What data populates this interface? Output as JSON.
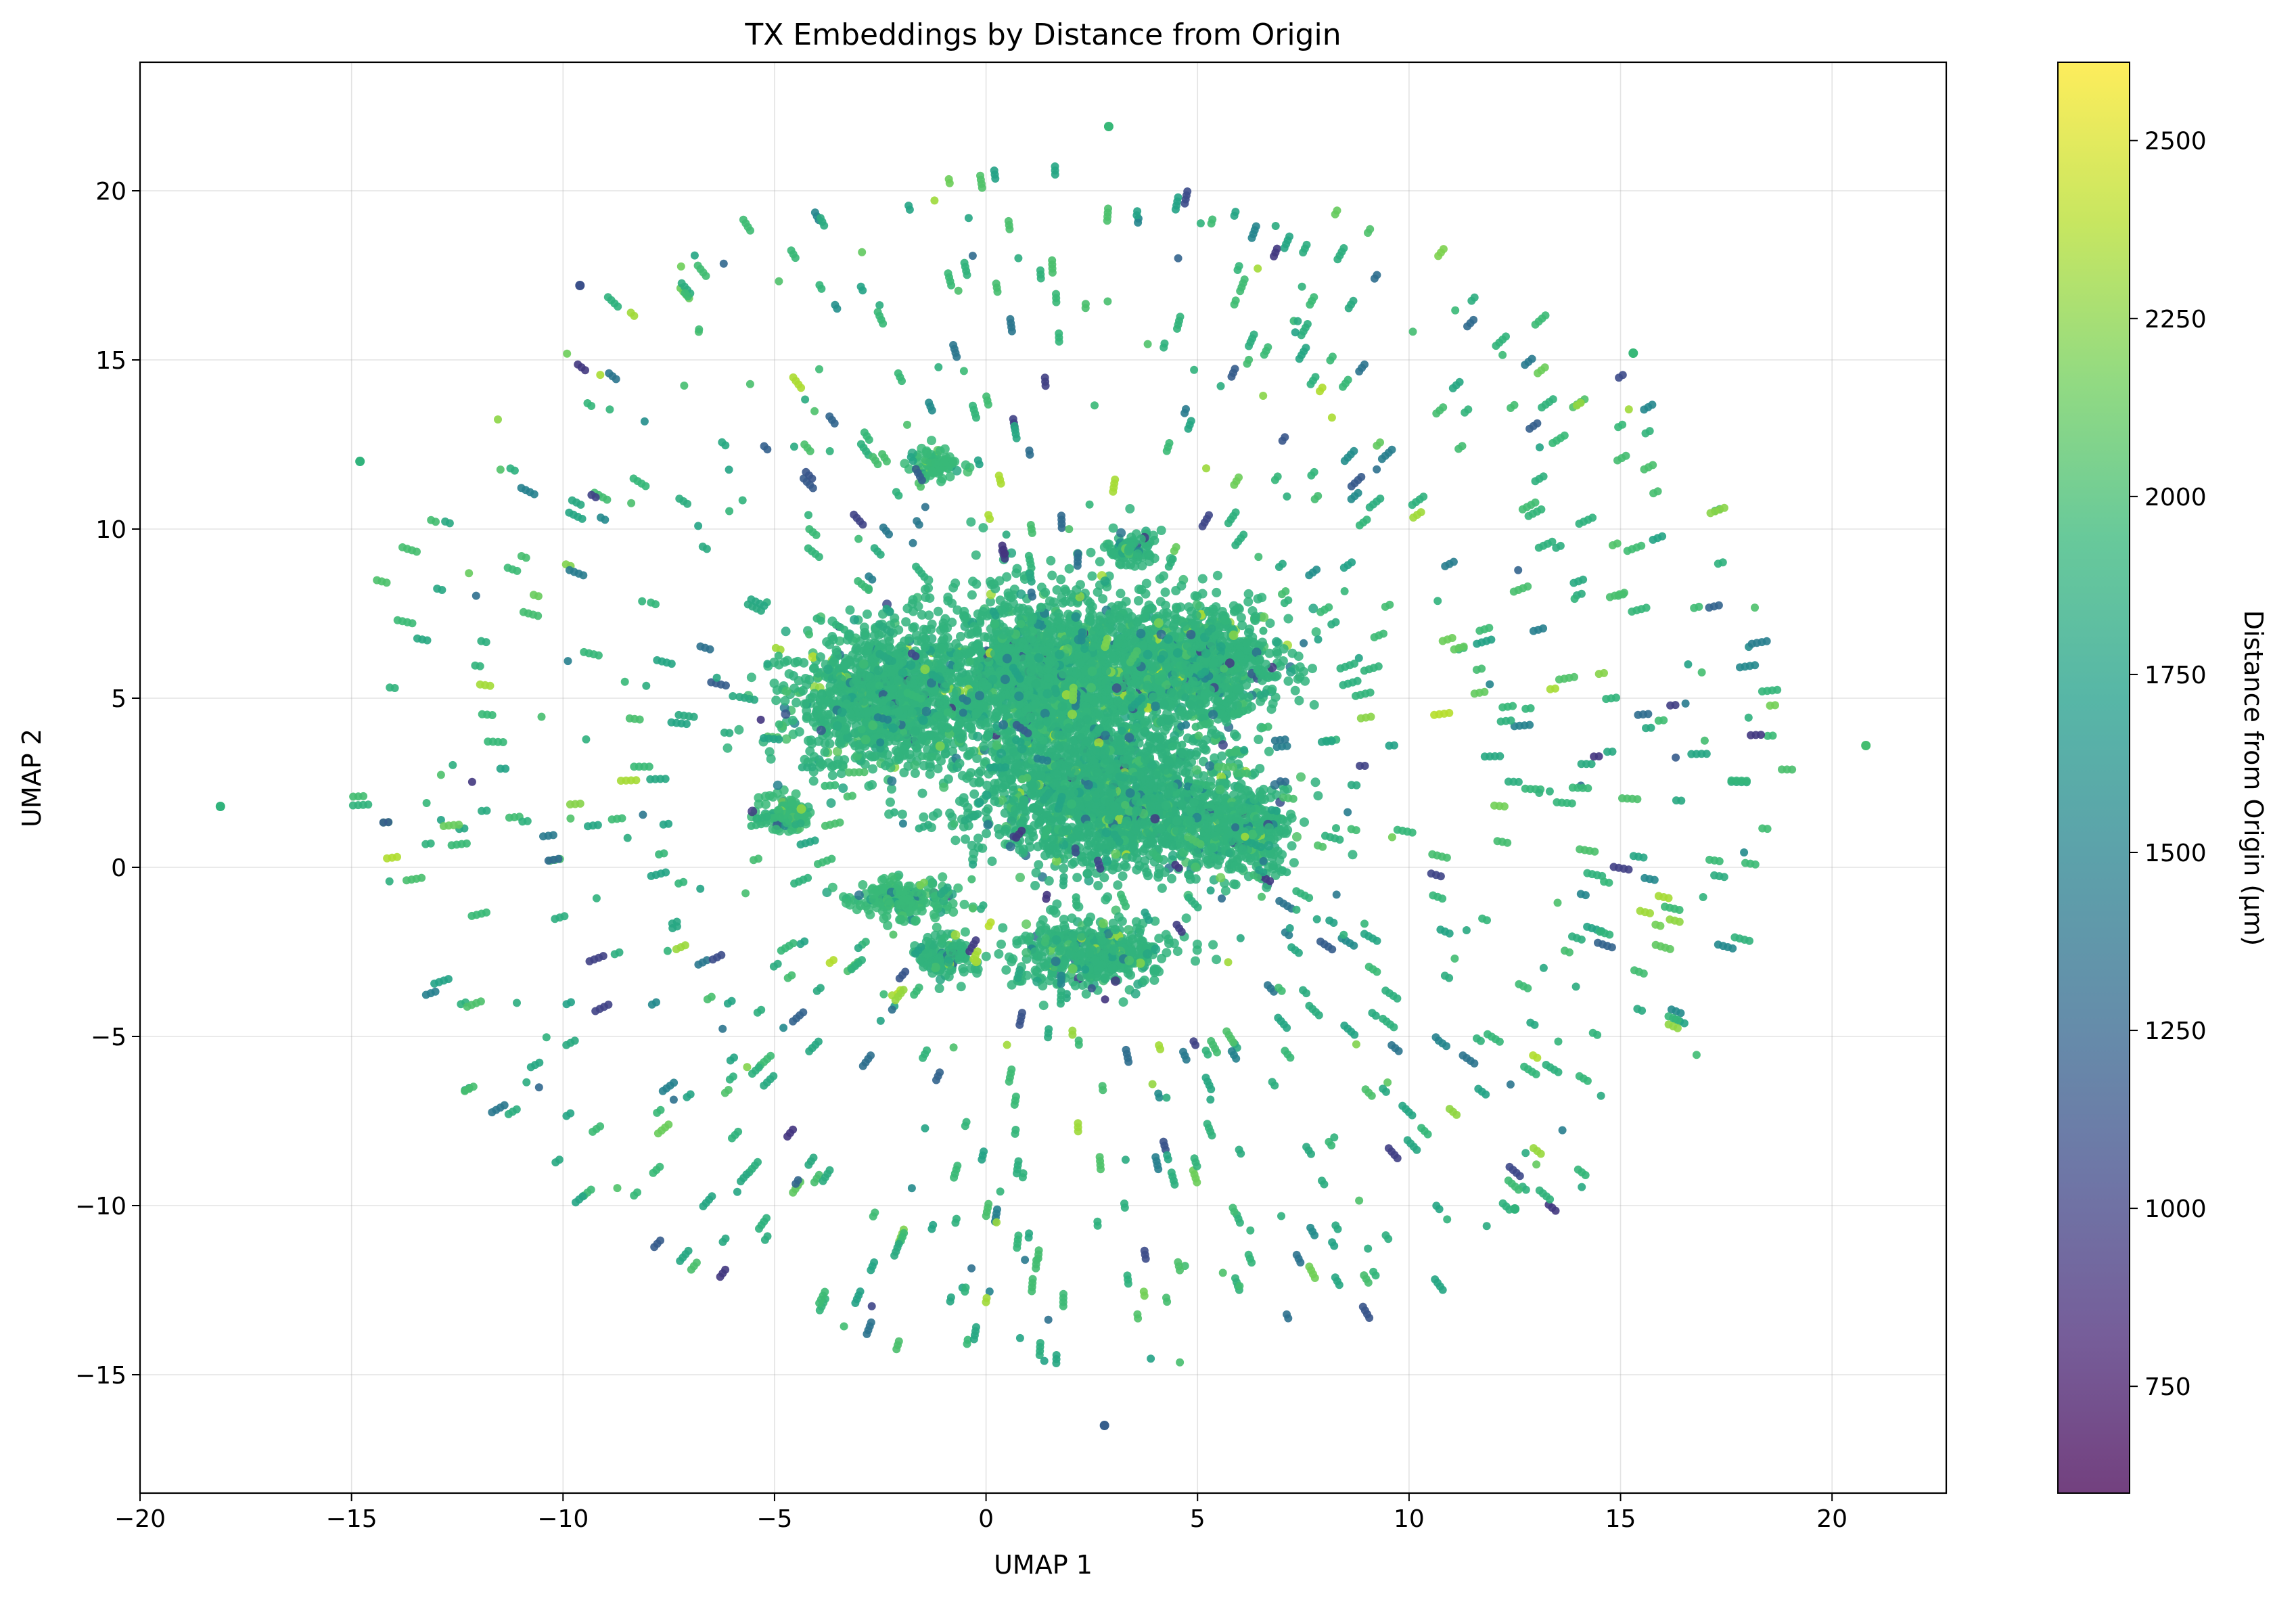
{
  "chart_data": {
    "type": "scatter",
    "title": "TX Embeddings by Distance from Origin",
    "xlabel": "UMAP 1",
    "ylabel": "UMAP 2",
    "xlim": [
      -20,
      22.7
    ],
    "ylim": [
      -18.5,
      23.8
    ],
    "x_ticks": [
      -20,
      -15,
      -10,
      -5,
      0,
      5,
      10,
      15,
      20
    ],
    "y_ticks": [
      -15,
      -10,
      -5,
      0,
      5,
      10,
      15,
      20
    ],
    "x_tick_labels": [
      "−20",
      "−15",
      "−10",
      "−5",
      "0",
      "5",
      "10",
      "15",
      "20"
    ],
    "y_tick_labels": [
      "−15",
      "−10",
      "−5",
      "0",
      "5",
      "10",
      "15",
      "20"
    ],
    "grid": true,
    "colorbar": {
      "label": "Distance from Origin (µm)",
      "range": [
        600,
        2610
      ],
      "ticks": [
        750,
        1000,
        1250,
        1500,
        1750,
        2000,
        2250,
        2500
      ],
      "tick_labels": [
        "750",
        "1000",
        "1250",
        "1500",
        "1750",
        "2000",
        "2250",
        "2500"
      ],
      "colormap": [
        "#440154",
        "#482878",
        "#3e4989",
        "#31688e",
        "#26828e",
        "#1f9e89",
        "#35b779",
        "#6ece58",
        "#b5de2b",
        "#fde725"
      ]
    },
    "clusters": [
      {
        "center": [
          1.5,
          5.5
        ],
        "spread": [
          3.2,
          2.6
        ],
        "value": 1900
      },
      {
        "center": [
          -2.5,
          5.0
        ],
        "spread": [
          2.0,
          2.0
        ],
        "value": 1900
      },
      {
        "center": [
          5.0,
          6.0
        ],
        "spread": [
          2.0,
          1.8
        ],
        "value": 1900
      },
      {
        "center": [
          3.0,
          2.0
        ],
        "spread": [
          3.0,
          2.0
        ],
        "value": 1880
      },
      {
        "center": [
          -4.8,
          1.6
        ],
        "spread": [
          0.6,
          0.6
        ],
        "value": 1950
      },
      {
        "center": [
          -1.2,
          11.9
        ],
        "spread": [
          0.6,
          0.5
        ],
        "value": 1950
      },
      {
        "center": [
          -2.0,
          -1.0
        ],
        "spread": [
          1.2,
          0.6
        ],
        "value": 1950
      },
      {
        "center": [
          2.5,
          -2.5
        ],
        "spread": [
          1.8,
          1.0
        ],
        "value": 1900
      },
      {
        "center": [
          -1.0,
          -2.6
        ],
        "spread": [
          0.7,
          0.7
        ],
        "value": 1900
      },
      {
        "center": [
          6.0,
          1.0
        ],
        "spread": [
          1.2,
          1.2
        ],
        "value": 1900
      },
      {
        "center": [
          3.4,
          9.4
        ],
        "spread": [
          0.6,
          0.5
        ],
        "value": 1900
      }
    ],
    "points_sample": [
      {
        "x": 2.9,
        "y": 21.9,
        "value": 1950
      },
      {
        "x": 20.8,
        "y": 3.6,
        "value": 2000
      },
      {
        "x": -18.1,
        "y": 1.8,
        "value": 1900
      },
      {
        "x": 2.8,
        "y": -16.5,
        "value": 1200
      },
      {
        "x": 12.5,
        "y": -10.1,
        "value": 1900
      },
      {
        "x": 15.3,
        "y": 15.2,
        "value": 1950
      },
      {
        "x": -14.8,
        "y": 12.0,
        "value": 1900
      },
      {
        "x": -9.6,
        "y": 17.2,
        "value": 1100
      }
    ]
  }
}
